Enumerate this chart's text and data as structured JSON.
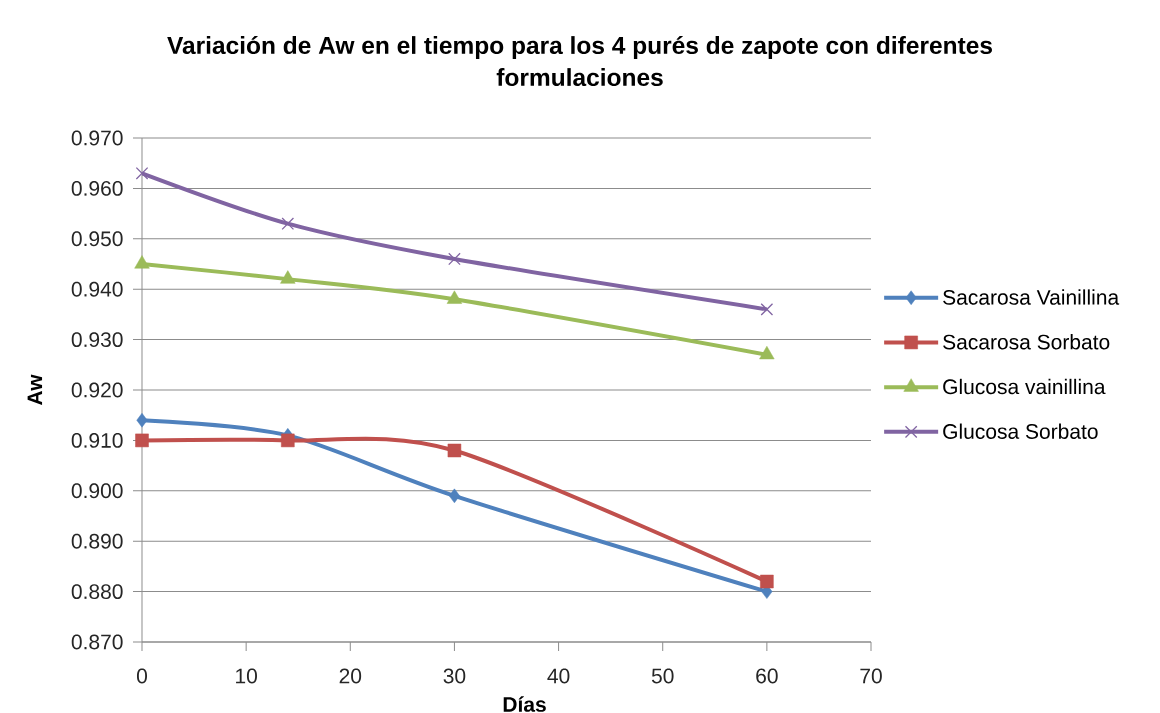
{
  "chart_data": {
    "type": "line",
    "title": "Variación de Aw en el tiempo para los 4 purés de zapote con diferentes formulaciones",
    "xlabel": "Días",
    "ylabel": "Aw",
    "x": [
      0,
      14,
      30,
      60
    ],
    "series": [
      {
        "name": "Sacarosa Vainillina",
        "color": "#4f81bd",
        "marker": "diamond",
        "values": [
          0.914,
          0.911,
          0.899,
          0.88
        ]
      },
      {
        "name": "Sacarosa Sorbato",
        "color": "#c0504d",
        "marker": "square",
        "values": [
          0.91,
          0.91,
          0.908,
          0.882
        ]
      },
      {
        "name": "Glucosa vainillina",
        "color": "#9bbb59",
        "marker": "triangle",
        "values": [
          0.945,
          0.942,
          0.938,
          0.927
        ]
      },
      {
        "name": "Glucosa Sorbato",
        "color": "#8064a2",
        "marker": "cross",
        "values": [
          0.963,
          0.953,
          0.946,
          0.936
        ]
      }
    ],
    "xlim": [
      0,
      70
    ],
    "xticks": [
      0,
      10,
      20,
      30,
      40,
      50,
      60,
      70
    ],
    "ylim": [
      0.87,
      0.97
    ],
    "yticks": [
      {
        "value": 0.87,
        "label": "0.870"
      },
      {
        "value": 0.88,
        "label": "0.880"
      },
      {
        "value": 0.89,
        "label": "0.890"
      },
      {
        "value": 0.9,
        "label": "0.900"
      },
      {
        "value": 0.91,
        "label": "0.910"
      },
      {
        "value": 0.92,
        "label": "0.920"
      },
      {
        "value": 0.93,
        "label": "0.930"
      },
      {
        "value": 0.94,
        "label": "0.940"
      },
      {
        "value": 0.95,
        "label": "0.950"
      },
      {
        "value": 0.96,
        "label": "0.960"
      },
      {
        "value": 0.97,
        "label": "0.970"
      }
    ],
    "grid": "y",
    "legend": "right",
    "line_style": "solid"
  }
}
